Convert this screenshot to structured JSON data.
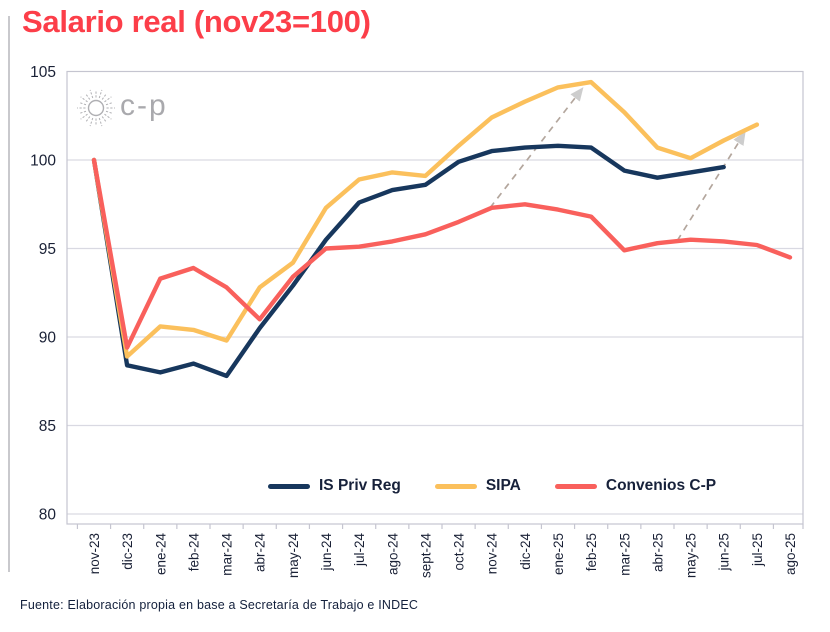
{
  "page": {
    "title": "Salario real (nov23=100)",
    "source": "Fuente: Elaboración propia en base a Secretaría de Trabajo e INDEC",
    "logo_text": "c-p"
  },
  "colors": {
    "title_red": "#fc3e49",
    "navy": "#17375d",
    "yellow": "#fbc05c",
    "salmon": "#f9605c",
    "gridline": "#d9d9e2",
    "plot_border": "#c5c5d0",
    "axis_text": "#1a2136",
    "arrow": "#b3a69d",
    "arrowhead": "#cdcdcd",
    "logo_gray": "#a2a2a6"
  },
  "chart_data": {
    "type": "line",
    "title": "Salario real (nov23=100)",
    "x_labels": [
      "nov-23",
      "dic-23",
      "ene-24",
      "feb-24",
      "mar-24",
      "abr-24",
      "may-24",
      "jun-24",
      "jul-24",
      "ago-24",
      "sept-24",
      "oct-24",
      "nov-24",
      "dic-24",
      "ene-25",
      "feb-25",
      "mar-25",
      "abr-25",
      "may-25",
      "jun-25",
      "jul-25",
      "ago-25"
    ],
    "y_ticks": [
      80,
      85,
      90,
      95,
      100,
      105
    ],
    "ylim": [
      79.4,
      105
    ],
    "grid": true,
    "legend_position": "bottom-inside",
    "series": [
      {
        "name": "IS Priv Reg",
        "color": "#17375d",
        "values": [
          100,
          88.4,
          88.0,
          88.5,
          87.8,
          90.5,
          92.9,
          95.5,
          97.6,
          98.3,
          98.6,
          99.9,
          100.5,
          100.7,
          100.8,
          100.7,
          99.4,
          99.0,
          99.3,
          99.6,
          null,
          null
        ]
      },
      {
        "name": "SIPA",
        "color": "#fbc05c",
        "values": [
          100,
          88.9,
          90.6,
          90.4,
          89.8,
          92.8,
          94.2,
          97.3,
          98.9,
          99.3,
          99.1,
          100.8,
          102.4,
          103.3,
          104.1,
          104.4,
          102.7,
          100.7,
          100.1,
          101.1,
          102.0,
          null
        ]
      },
      {
        "name": "Convenios C-P",
        "color": "#f9605c",
        "values": [
          100,
          89.4,
          93.3,
          93.9,
          92.8,
          91.0,
          93.4,
          95.0,
          95.1,
          95.4,
          95.8,
          96.5,
          97.3,
          97.5,
          97.2,
          96.8,
          94.9,
          95.3,
          95.5,
          95.4,
          95.2,
          94.5
        ]
      }
    ],
    "annotations": [
      {
        "type": "arrow",
        "from": {
          "x": 11.95,
          "y": 97.3
        },
        "to": {
          "x": 14.72,
          "y": 104.0
        }
      },
      {
        "type": "arrow",
        "from": {
          "x": 17.6,
          "y": 95.45
        },
        "to": {
          "x": 19.62,
          "y": 101.5
        }
      }
    ]
  }
}
